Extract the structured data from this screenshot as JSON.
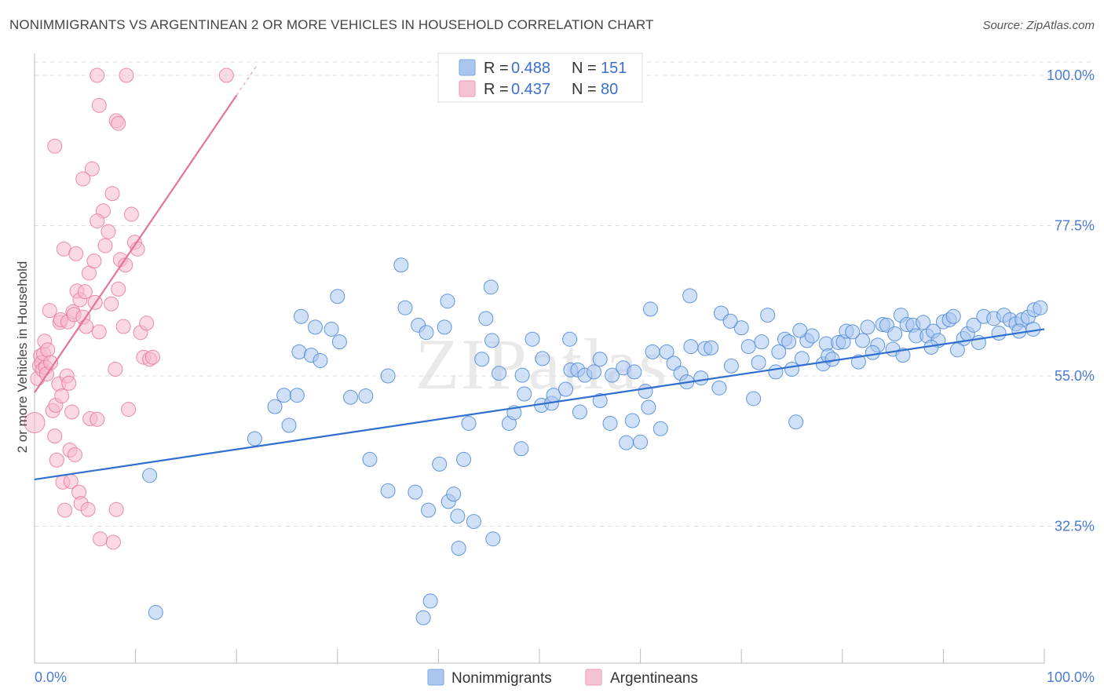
{
  "title": "NONIMMIGRANTS VS ARGENTINEAN 2 OR MORE VEHICLES IN HOUSEHOLD CORRELATION CHART",
  "source": "Source: ZipAtlas.com",
  "watermark": "ZIPatlas",
  "colors": {
    "blue": "#4a86d8",
    "blue_fill": "#a9c6ef",
    "pink": "#e8789f",
    "pink_fill": "#f6b9cd",
    "tick_text": "#4a7bd0",
    "grid": "#dddddd"
  },
  "legend": {
    "rows": [
      {
        "r_label": "R =",
        "r_value": "0.488",
        "n_label": "N =",
        "n_value": "151"
      },
      {
        "r_label": "R =",
        "r_value": "0.437",
        "n_label": "N =",
        "n_value": "80"
      }
    ]
  },
  "bottom_legend": [
    "Nonimmigrants",
    "Argentineans"
  ],
  "chart_data": {
    "type": "scatter",
    "title": "NONIMMIGRANTS VS ARGENTINEAN 2 OR MORE VEHICLES IN HOUSEHOLD CORRELATION CHART",
    "xlabel": "",
    "ylabel": "2 or more Vehicles in Household",
    "xlim": [
      0,
      100
    ],
    "ylim": [
      12.0,
      102.0
    ],
    "x_tick_labels": [
      "0.0%",
      "100.0%"
    ],
    "y_ticks": [
      32.5,
      55.0,
      77.5,
      100.0
    ],
    "y_tick_labels": [
      "32.5%",
      "55.0%",
      "77.5%",
      "100.0%"
    ],
    "grid": true,
    "legend_position": "top-center",
    "series": [
      {
        "name": "Nonimmigrants",
        "r": 0.488,
        "n": 151,
        "trend": {
          "x": [
            0,
            100
          ],
          "y": [
            39.5,
            62.0
          ]
        },
        "points": [
          [
            11.4,
            40.1
          ],
          [
            21.8,
            45.6
          ],
          [
            12.0,
            19.6
          ],
          [
            23.8,
            50.4
          ],
          [
            24.7,
            52.1
          ],
          [
            25.2,
            47.6
          ],
          [
            26.0,
            52.1
          ],
          [
            26.2,
            58.6
          ],
          [
            26.4,
            63.9
          ],
          [
            27.4,
            58.1
          ],
          [
            27.8,
            62.3
          ],
          [
            28.3,
            57.3
          ],
          [
            29.4,
            62.0
          ],
          [
            30.0,
            66.9
          ],
          [
            30.2,
            60.1
          ],
          [
            31.3,
            51.8
          ],
          [
            32.8,
            52.0
          ],
          [
            33.2,
            42.5
          ],
          [
            35.0,
            37.8
          ],
          [
            35.0,
            55.0
          ],
          [
            36.3,
            71.6
          ],
          [
            36.7,
            65.2
          ],
          [
            37.7,
            37.6
          ],
          [
            38.0,
            62.6
          ],
          [
            38.8,
            61.5
          ],
          [
            39.0,
            34.9
          ],
          [
            39.2,
            21.3
          ],
          [
            40.1,
            41.8
          ],
          [
            40.6,
            62.3
          ],
          [
            41.0,
            36.2
          ],
          [
            41.5,
            37.3
          ],
          [
            41.9,
            34.0
          ],
          [
            42.0,
            29.2
          ],
          [
            42.5,
            42.5
          ],
          [
            43.0,
            47.9
          ],
          [
            43.5,
            33.2
          ],
          [
            44.7,
            63.6
          ],
          [
            45.2,
            68.3
          ],
          [
            45.3,
            60.3
          ],
          [
            45.4,
            30.6
          ],
          [
            47.0,
            47.9
          ],
          [
            47.5,
            49.5
          ],
          [
            48.2,
            44.1
          ],
          [
            48.3,
            55.1
          ],
          [
            48.5,
            52.3
          ],
          [
            49.3,
            60.5
          ],
          [
            50.2,
            50.6
          ],
          [
            50.3,
            57.6
          ],
          [
            51.2,
            50.9
          ],
          [
            51.4,
            52.1
          ],
          [
            52.6,
            53.0
          ],
          [
            53.1,
            55.9
          ],
          [
            53.8,
            55.9
          ],
          [
            54.0,
            49.6
          ],
          [
            54.5,
            55.1
          ],
          [
            55.4,
            55.6
          ],
          [
            56.0,
            51.3
          ],
          [
            57.0,
            47.9
          ],
          [
            57.2,
            55.1
          ],
          [
            58.3,
            56.2
          ],
          [
            58.6,
            45.0
          ],
          [
            59.2,
            48.3
          ],
          [
            59.4,
            55.6
          ],
          [
            60.5,
            52.7
          ],
          [
            60.8,
            50.3
          ],
          [
            61.2,
            58.6
          ],
          [
            62.0,
            47.1
          ],
          [
            62.6,
            58.6
          ],
          [
            63.3,
            56.9
          ],
          [
            64.0,
            55.4
          ],
          [
            64.6,
            54.1
          ],
          [
            65.0,
            59.4
          ],
          [
            66.0,
            54.7
          ],
          [
            66.4,
            59.1
          ],
          [
            67.0,
            59.2
          ],
          [
            67.8,
            53.2
          ],
          [
            68.0,
            64.4
          ],
          [
            69.0,
            56.5
          ],
          [
            70.0,
            62.2
          ],
          [
            70.7,
            59.4
          ],
          [
            71.7,
            57.0
          ],
          [
            72.0,
            60.1
          ],
          [
            72.6,
            64.1
          ],
          [
            73.7,
            58.6
          ],
          [
            74.3,
            60.5
          ],
          [
            74.7,
            60.1
          ],
          [
            75.0,
            56.0
          ],
          [
            75.4,
            48.1
          ],
          [
            76.0,
            57.6
          ],
          [
            76.5,
            60.3
          ],
          [
            78.1,
            56.8
          ],
          [
            78.4,
            59.8
          ],
          [
            78.6,
            58.0
          ],
          [
            79.6,
            60.0
          ],
          [
            80.1,
            60.1
          ],
          [
            80.4,
            61.7
          ],
          [
            81.6,
            57.1
          ],
          [
            82.0,
            60.3
          ],
          [
            82.5,
            62.3
          ],
          [
            83.5,
            59.6
          ],
          [
            84.0,
            62.7
          ],
          [
            84.4,
            62.6
          ],
          [
            85.2,
            61.3
          ],
          [
            85.8,
            64.1
          ],
          [
            86.4,
            62.7
          ],
          [
            87.0,
            62.6
          ],
          [
            87.3,
            61.0
          ],
          [
            88.0,
            63.0
          ],
          [
            88.4,
            61.0
          ],
          [
            89.0,
            61.7
          ],
          [
            89.5,
            60.3
          ],
          [
            90.0,
            63.1
          ],
          [
            90.6,
            63.4
          ],
          [
            91.0,
            63.9
          ],
          [
            92.0,
            60.6
          ],
          [
            92.4,
            61.3
          ],
          [
            93.0,
            62.6
          ],
          [
            94.0,
            63.9
          ],
          [
            95.0,
            63.6
          ],
          [
            96.0,
            64.1
          ],
          [
            96.6,
            63.4
          ],
          [
            97.2,
            62.8
          ],
          [
            97.8,
            63.4
          ],
          [
            98.4,
            63.8
          ],
          [
            99.0,
            64.9
          ],
          [
            99.6,
            65.2
          ],
          [
            60.0,
            45.1
          ],
          [
            56.0,
            57.5
          ],
          [
            53.0,
            60.5
          ],
          [
            46.0,
            55.4
          ],
          [
            44.3,
            57.5
          ],
          [
            40.9,
            66.2
          ],
          [
            38.5,
            18.8
          ],
          [
            61.0,
            65.0
          ],
          [
            64.9,
            67.0
          ],
          [
            68.9,
            63.2
          ],
          [
            71.2,
            51.6
          ],
          [
            73.4,
            55.6
          ],
          [
            75.8,
            61.8
          ],
          [
            77.0,
            61.0
          ],
          [
            79.0,
            57.5
          ],
          [
            81.0,
            61.6
          ],
          [
            83.0,
            58.5
          ],
          [
            85.0,
            59.0
          ],
          [
            86.0,
            58.1
          ],
          [
            88.8,
            59.3
          ],
          [
            91.4,
            58.9
          ],
          [
            93.5,
            60.0
          ],
          [
            95.5,
            61.4
          ],
          [
            97.5,
            61.7
          ],
          [
            98.9,
            62.0
          ]
        ]
      },
      {
        "name": "Argentineans",
        "r": 0.437,
        "n": 80,
        "trend": {
          "x": [
            0,
            20
          ],
          "y": [
            52.5,
            97.0
          ]
        },
        "points": [
          [
            0.0,
            48.0
          ],
          [
            0.3,
            54.6
          ],
          [
            0.5,
            56.5
          ],
          [
            0.6,
            58.0
          ],
          [
            0.7,
            57.0
          ],
          [
            0.8,
            55.9
          ],
          [
            0.9,
            58.3
          ],
          [
            1.0,
            60.2
          ],
          [
            1.1,
            56.3
          ],
          [
            1.2,
            55.3
          ],
          [
            1.3,
            58.9
          ],
          [
            1.5,
            64.8
          ],
          [
            1.6,
            57.0
          ],
          [
            1.8,
            49.8
          ],
          [
            2.0,
            46.0
          ],
          [
            2.1,
            50.6
          ],
          [
            2.2,
            42.4
          ],
          [
            2.4,
            53.8
          ],
          [
            2.5,
            63.0
          ],
          [
            2.6,
            63.4
          ],
          [
            2.7,
            52.0
          ],
          [
            2.8,
            39.1
          ],
          [
            2.9,
            74.0
          ],
          [
            3.0,
            34.9
          ],
          [
            3.2,
            55.0
          ],
          [
            3.3,
            63.1
          ],
          [
            3.4,
            53.9
          ],
          [
            3.5,
            43.9
          ],
          [
            3.6,
            39.2
          ],
          [
            3.7,
            49.6
          ],
          [
            3.8,
            64.6
          ],
          [
            3.9,
            64.2
          ],
          [
            4.0,
            43.2
          ],
          [
            4.1,
            73.3
          ],
          [
            4.2,
            67.7
          ],
          [
            4.4,
            37.6
          ],
          [
            4.5,
            66.4
          ],
          [
            4.6,
            35.9
          ],
          [
            4.8,
            63.8
          ],
          [
            5.0,
            67.6
          ],
          [
            5.1,
            62.4
          ],
          [
            5.3,
            35.0
          ],
          [
            5.4,
            70.4
          ],
          [
            5.5,
            48.6
          ],
          [
            5.7,
            86.0
          ],
          [
            5.9,
            72.2
          ],
          [
            6.0,
            66.0
          ],
          [
            6.2,
            48.5
          ],
          [
            6.4,
            61.6
          ],
          [
            6.5,
            30.6
          ],
          [
            6.8,
            79.7
          ],
          [
            7.0,
            74.5
          ],
          [
            7.3,
            76.6
          ],
          [
            7.6,
            65.8
          ],
          [
            7.8,
            30.1
          ],
          [
            8.0,
            56.0
          ],
          [
            8.1,
            35.0
          ],
          [
            8.3,
            68.0
          ],
          [
            8.5,
            72.4
          ],
          [
            8.8,
            62.4
          ],
          [
            9.0,
            71.6
          ],
          [
            9.3,
            50.0
          ],
          [
            9.6,
            79.2
          ],
          [
            9.9,
            75.0
          ],
          [
            10.2,
            74.0
          ],
          [
            10.5,
            61.5
          ],
          [
            10.8,
            57.8
          ],
          [
            11.1,
            62.9
          ],
          [
            11.4,
            57.5
          ],
          [
            11.7,
            57.8
          ],
          [
            6.2,
            100.0
          ],
          [
            9.1,
            100.0
          ],
          [
            19.0,
            100.0
          ],
          [
            6.4,
            95.5
          ],
          [
            8.1,
            93.2
          ],
          [
            8.3,
            92.8
          ],
          [
            2.0,
            89.4
          ],
          [
            4.8,
            84.5
          ],
          [
            7.7,
            82.3
          ],
          [
            6.2,
            78.2
          ]
        ]
      }
    ]
  }
}
